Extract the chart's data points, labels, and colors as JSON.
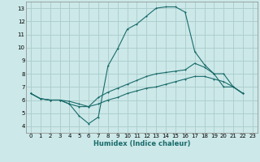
{
  "xlabel": "Humidex (Indice chaleur)",
  "bg_color": "#cce8e8",
  "grid_color": "#aacccc",
  "line_color": "#1a6b6b",
  "xlim": [
    -0.5,
    23.5
  ],
  "ylim": [
    3.5,
    13.5
  ],
  "xticks": [
    0,
    1,
    2,
    3,
    4,
    5,
    6,
    7,
    8,
    9,
    10,
    11,
    12,
    13,
    14,
    15,
    16,
    17,
    18,
    19,
    20,
    21,
    22,
    23
  ],
  "yticks": [
    4,
    5,
    6,
    7,
    8,
    9,
    10,
    11,
    12,
    13
  ],
  "line1_x": [
    0,
    1,
    2,
    3,
    4,
    5,
    6,
    7,
    8,
    9,
    10,
    11,
    12,
    13,
    14,
    15,
    16,
    17,
    18,
    19,
    20,
    21,
    22
  ],
  "line1_y": [
    6.5,
    6.1,
    6.0,
    6.0,
    5.7,
    4.8,
    4.2,
    4.7,
    8.6,
    9.9,
    11.4,
    11.8,
    12.4,
    13.0,
    13.1,
    13.1,
    12.7,
    9.7,
    8.7,
    8.0,
    7.0,
    7.0,
    6.5
  ],
  "line2_x": [
    0,
    1,
    2,
    3,
    4,
    5,
    6,
    7,
    8,
    9,
    10,
    11,
    12,
    13,
    14,
    15,
    16,
    17,
    18,
    19,
    20,
    21,
    22
  ],
  "line2_y": [
    6.5,
    6.1,
    6.0,
    6.0,
    5.7,
    5.5,
    5.5,
    6.2,
    6.6,
    6.9,
    7.2,
    7.5,
    7.8,
    8.0,
    8.1,
    8.2,
    8.3,
    8.8,
    8.5,
    8.0,
    8.0,
    7.0,
    6.5
  ],
  "line3_x": [
    0,
    1,
    2,
    3,
    4,
    5,
    6,
    7,
    8,
    9,
    10,
    11,
    12,
    13,
    14,
    15,
    16,
    17,
    18,
    19,
    20,
    21,
    22
  ],
  "line3_y": [
    6.5,
    6.1,
    6.0,
    6.0,
    5.9,
    5.7,
    5.5,
    5.7,
    6.0,
    6.2,
    6.5,
    6.7,
    6.9,
    7.0,
    7.2,
    7.4,
    7.6,
    7.8,
    7.8,
    7.6,
    7.4,
    7.0,
    6.5
  ]
}
